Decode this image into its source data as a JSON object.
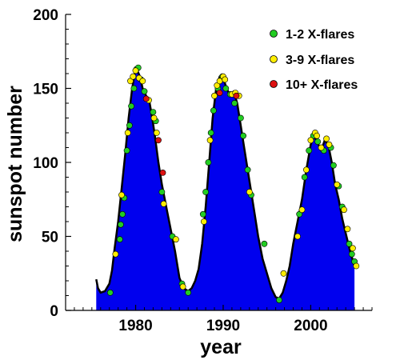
{
  "chart_data": {
    "type": "area",
    "title": "",
    "xlabel": "year",
    "ylabel": "sunspot number",
    "xlim": [
      1972,
      2007
    ],
    "ylim": [
      0,
      200
    ],
    "x_ticks": [
      1980,
      1990,
      2000
    ],
    "x_tick_labels": [
      "1980",
      "1990",
      "2000"
    ],
    "y_ticks": [
      0,
      50,
      100,
      150,
      200
    ],
    "y_tick_labels": [
      "0",
      "50",
      "100",
      "150",
      "200"
    ],
    "grid": false,
    "legend_position": "top-right",
    "colors": {
      "area": "#0000ee",
      "outline": "#000000",
      "one_to_two": "#22cc22",
      "three_to_nine": "#ffee00",
      "ten_plus": "#dd1111"
    },
    "sunspot_series": {
      "name": "",
      "x": [
        1975.5,
        1975.7,
        1976.0,
        1976.5,
        1977.0,
        1977.3,
        1977.6,
        1978.0,
        1978.4,
        1978.8,
        1979.2,
        1979.6,
        1979.9,
        1980.2,
        1980.5,
        1980.8,
        1981.2,
        1981.6,
        1981.9,
        1982.2,
        1982.6,
        1983.0,
        1983.5,
        1984.0,
        1984.5,
        1985.0,
        1985.5,
        1986.0,
        1986.4,
        1986.8,
        1987.2,
        1987.6,
        1988.0,
        1988.4,
        1988.8,
        1989.2,
        1989.6,
        1990.0,
        1990.4,
        1990.8,
        1991.2,
        1991.6,
        1992.0,
        1992.4,
        1992.8,
        1993.2,
        1993.6,
        1994.0,
        1994.5,
        1995.0,
        1995.5,
        1996.0,
        1996.4,
        1996.8,
        1997.2,
        1997.6,
        1998.0,
        1998.5,
        1999.0,
        1999.5,
        2000.0,
        2000.4,
        2000.8,
        2001.2,
        2001.6,
        2002.0,
        2002.4,
        2002.8,
        2003.2,
        2003.6,
        2004.0,
        2004.5,
        2005.0
      ],
      "values": [
        21,
        15,
        12,
        13,
        18,
        27,
        42,
        60,
        82,
        105,
        130,
        150,
        160,
        162,
        158,
        150,
        145,
        140,
        130,
        118,
        100,
        85,
        70,
        55,
        40,
        22,
        15,
        13,
        15,
        20,
        28,
        45,
        70,
        100,
        130,
        150,
        158,
        157,
        150,
        145,
        148,
        140,
        125,
        110,
        95,
        80,
        65,
        50,
        35,
        25,
        15,
        9,
        8,
        12,
        20,
        30,
        45,
        60,
        75,
        95,
        112,
        118,
        113,
        108,
        115,
        112,
        100,
        85,
        75,
        62,
        52,
        40,
        30
      ]
    },
    "flare_series": [
      {
        "name": "1-2 X-flares",
        "color": "#22cc22",
        "points": [
          [
            1977.1,
            12
          ],
          [
            1978.2,
            48
          ],
          [
            1978.3,
            58
          ],
          [
            1978.5,
            65
          ],
          [
            1978.7,
            76
          ],
          [
            1979.0,
            108
          ],
          [
            1979.3,
            125
          ],
          [
            1979.5,
            138
          ],
          [
            1979.8,
            150
          ],
          [
            1980.1,
            163
          ],
          [
            1980.3,
            164
          ],
          [
            1980.6,
            156
          ],
          [
            1981.0,
            148
          ],
          [
            1982.0,
            134
          ],
          [
            1982.3,
            128
          ],
          [
            1983.0,
            80
          ],
          [
            1984.2,
            50
          ],
          [
            1985.3,
            18
          ],
          [
            1986.0,
            12
          ],
          [
            1987.7,
            65
          ],
          [
            1988.0,
            80
          ],
          [
            1988.3,
            100
          ],
          [
            1988.6,
            120
          ],
          [
            1988.9,
            135
          ],
          [
            1989.4,
            150
          ],
          [
            1989.9,
            158
          ],
          [
            1990.3,
            150
          ],
          [
            1990.8,
            146
          ],
          [
            1991.3,
            140
          ],
          [
            1992.0,
            130
          ],
          [
            1992.3,
            118
          ],
          [
            1992.8,
            95
          ],
          [
            1993.2,
            78
          ],
          [
            1994.7,
            45
          ],
          [
            1996.4,
            7
          ],
          [
            1998.7,
            65
          ],
          [
            1999.3,
            90
          ],
          [
            1999.8,
            108
          ],
          [
            2000.3,
            118
          ],
          [
            2000.8,
            114
          ],
          [
            2001.5,
            108
          ],
          [
            2002.3,
            110
          ],
          [
            2002.6,
            98
          ],
          [
            2003.2,
            84
          ],
          [
            2003.6,
            70
          ],
          [
            2004.4,
            45
          ],
          [
            2004.7,
            38
          ],
          [
            2005.0,
            33
          ]
        ]
      },
      {
        "name": "3-9 X-flares",
        "color": "#ffee00",
        "points": [
          [
            1977.7,
            38
          ],
          [
            1978.4,
            78
          ],
          [
            1979.1,
            120
          ],
          [
            1979.4,
            155
          ],
          [
            1979.7,
            158
          ],
          [
            1980.0,
            162
          ],
          [
            1980.4,
            157
          ],
          [
            1980.8,
            155
          ],
          [
            1981.5,
            142
          ],
          [
            1982.1,
            130
          ],
          [
            1982.4,
            120
          ],
          [
            1983.2,
            72
          ],
          [
            1984.6,
            48
          ],
          [
            1985.4,
            16
          ],
          [
            1987.8,
            60
          ],
          [
            1988.5,
            115
          ],
          [
            1989.0,
            145
          ],
          [
            1989.3,
            152
          ],
          [
            1989.6,
            155
          ],
          [
            1990.0,
            158
          ],
          [
            1990.2,
            156
          ],
          [
            1991.0,
            146
          ],
          [
            1991.4,
            147
          ],
          [
            1991.8,
            145
          ],
          [
            1993.0,
            80
          ],
          [
            1996.9,
            25
          ],
          [
            1998.5,
            50
          ],
          [
            1999.0,
            68
          ],
          [
            1999.5,
            95
          ],
          [
            2000.0,
            115
          ],
          [
            2000.5,
            120
          ],
          [
            2000.7,
            118
          ],
          [
            2001.2,
            110
          ],
          [
            2001.8,
            116
          ],
          [
            2002.1,
            112
          ],
          [
            2003.0,
            85
          ],
          [
            2003.8,
            68
          ],
          [
            2004.2,
            55
          ],
          [
            2004.8,
            42
          ],
          [
            2005.2,
            30
          ]
        ]
      },
      {
        "name": "10+ X-flares",
        "color": "#dd1111",
        "points": [
          [
            1981.2,
            143
          ],
          [
            1982.6,
            115
          ],
          [
            1983.1,
            93
          ],
          [
            1989.6,
            147
          ],
          [
            1991.5,
            145
          ]
        ]
      }
    ]
  }
}
